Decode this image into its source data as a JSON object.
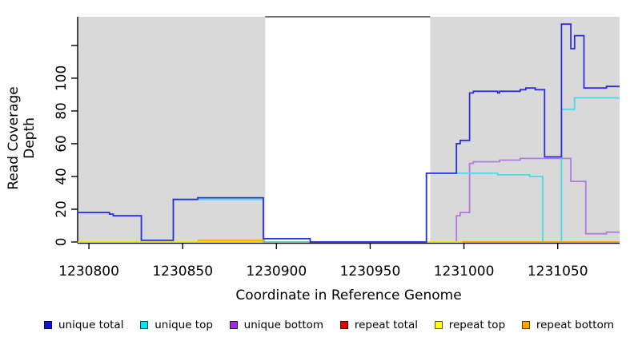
{
  "chart_data": {
    "type": "line",
    "title": "",
    "xlabel": "Coordinate in Reference Genome",
    "ylabel": "Read Coverage Depth",
    "xlim": [
      1230794,
      1231083
    ],
    "ylim": [
      0,
      137.5
    ],
    "x_ticks": [
      1230800,
      1230850,
      1230900,
      1230950,
      1231000,
      1231050
    ],
    "y_ticks": [
      0,
      20,
      40,
      60,
      80,
      100
    ],
    "y_extra_ticks": [
      120
    ],
    "grid": false,
    "legend_position": "bottom",
    "shaded_regions": [
      {
        "x0": 1230794,
        "x1": 1230894,
        "color": "#d9d9d9"
      },
      {
        "x0": 1230982,
        "x1": 1231083,
        "color": "#d9d9d9"
      }
    ],
    "series": [
      {
        "name": "unique total",
        "color": "#2e2edb",
        "segments": [
          {
            "steps": [
              [
                1230794,
                18
              ],
              [
                1230811,
                17
              ],
              [
                1230813,
                16
              ],
              [
                1230828,
                1
              ],
              [
                1230845,
                26
              ],
              [
                1230858,
                27
              ],
              [
                1230893,
                2
              ],
              [
                1230918,
                0
              ],
              [
                1230980,
                42
              ],
              [
                1230996,
                60
              ],
              [
                1230998,
                62
              ],
              [
                1231003,
                91
              ],
              [
                1231005,
                92
              ],
              [
                1231018,
                91
              ],
              [
                1231019,
                92
              ],
              [
                1231030,
                93
              ],
              [
                1231033,
                94
              ],
              [
                1231038,
                93
              ],
              [
                1231043,
                52
              ],
              [
                1231052,
                133
              ],
              [
                1231057,
                118
              ],
              [
                1231059,
                126
              ],
              [
                1231064,
                94
              ],
              [
                1231076,
                95
              ]
            ],
            "end": 1231083
          }
        ]
      },
      {
        "name": "unique top",
        "color": "#4fd8e8",
        "segments": [
          {
            "steps": [
              [
                1230794,
                18
              ],
              [
                1230811,
                17
              ],
              [
                1230813,
                16
              ],
              [
                1230828,
                1
              ],
              [
                1230845,
                26
              ],
              [
                1230893,
                0
              ],
              [
                1230980,
                42
              ],
              [
                1231018,
                41
              ],
              [
                1231035,
                40
              ],
              [
                1231042,
                0
              ],
              [
                1231052,
                81
              ],
              [
                1231059,
                88
              ]
            ],
            "end": 1231083
          }
        ]
      },
      {
        "name": "unique bottom",
        "color": "#b379e3",
        "segments": [
          {
            "steps": [
              [
                1230794,
                0
              ],
              [
                1230996,
                16
              ],
              [
                1230998,
                18
              ],
              [
                1231003,
                48
              ],
              [
                1231005,
                49
              ],
              [
                1231019,
                50
              ],
              [
                1231030,
                51
              ],
              [
                1231057,
                37
              ],
              [
                1231065,
                5
              ],
              [
                1231076,
                6
              ]
            ],
            "end": 1231083
          }
        ]
      },
      {
        "name": "repeat total",
        "color": "#df5560",
        "segments": [
          {
            "steps": [
              [
                1230794,
                0
              ]
            ],
            "end": 1231083
          }
        ]
      },
      {
        "name": "repeat top",
        "color": "#f5f500",
        "segments": [
          {
            "steps": [
              [
                1230794,
                0
              ]
            ],
            "end": 1231083
          }
        ]
      },
      {
        "name": "repeat bottom",
        "color": "#ffa500",
        "segments": [
          {
            "steps": [
              [
                1230858,
                1
              ]
            ],
            "end": 1230894
          },
          {
            "steps": [
              [
                1230999,
                0
              ]
            ],
            "end": 1231083
          }
        ]
      }
    ]
  },
  "legend": {
    "items": [
      {
        "label": "unique total",
        "color": "#1212d2"
      },
      {
        "label": "unique top",
        "color": "#00e5ee"
      },
      {
        "label": "unique bottom",
        "color": "#9a30d5"
      },
      {
        "label": "repeat total",
        "color": "#e00000"
      },
      {
        "label": "repeat top",
        "color": "#ffff00"
      },
      {
        "label": "repeat bottom",
        "color": "#ffa500"
      }
    ]
  }
}
